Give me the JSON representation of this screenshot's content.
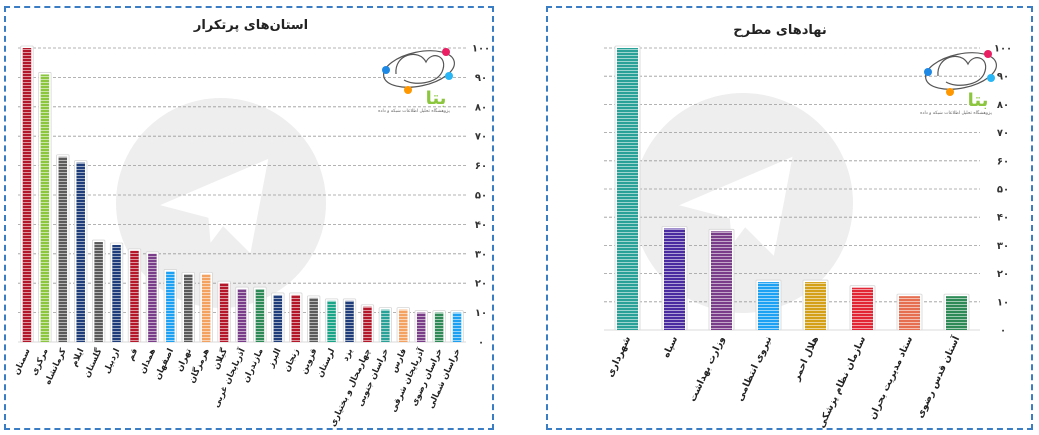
{
  "chart_data": [
    {
      "type": "bar",
      "title": "استان‌های پرتکرار",
      "categories": [
        "سمنان",
        "مرکزی",
        "کرمانشاه",
        "ایلام",
        "گلستان",
        "اردبیل",
        "قم",
        "همدان",
        "اصفهان",
        "تهران",
        "هرمزگان",
        "گیلان",
        "آذربایجان غربی",
        "مازندران",
        "البرز",
        "زنجان",
        "قزوین",
        "لرستان",
        "یزد",
        "چهارمحال و بختیاری",
        "خراسان جنوبی",
        "فارس",
        "آذربایجان شرقی",
        "خراسان رضوی",
        "خراسان شمالی"
      ],
      "values": [
        100,
        91,
        63,
        61,
        34,
        33,
        31,
        30,
        24,
        23,
        23,
        20,
        18,
        18,
        16,
        16,
        15,
        14,
        14,
        12,
        11,
        11,
        10,
        10,
        10
      ],
      "colors": [
        "#b5172a",
        "#8cc63f",
        "#5a5a5a",
        "#1f3d7a",
        "#5a5a5a",
        "#1f3d7a",
        "#b5172a",
        "#7a3d8a",
        "#1da1f2",
        "#5a5a5a",
        "#f4a261",
        "#b5172a",
        "#7a3d8a",
        "#2e8b57",
        "#1f3d7a",
        "#b5172a",
        "#5a5a5a",
        "#1aa589",
        "#1f3d7a",
        "#b5172a",
        "#2aa198",
        "#f4a261",
        "#7a3d8a",
        "#2e8b57",
        "#1da1f2"
      ],
      "y_ticks": [
        "۰",
        "۱۰",
        "۲۰",
        "۳۰",
        "۴۰",
        "۵۰",
        "۶۰",
        "۷۰",
        "۸۰",
        "۹۰",
        "۱۰۰"
      ],
      "ylim": [
        0,
        100
      ],
      "grid": true
    },
    {
      "type": "bar",
      "title": "نهادهای مطرح",
      "categories": [
        "شهرداری",
        "سپاه",
        "وزارت بهداشت",
        "نیروی انتظامی",
        "هلال احمر",
        "سازمان نظام پزشکی",
        "ستاد مدیریت بحران",
        "آستان قدس رضوی"
      ],
      "values": [
        100,
        36,
        35,
        17,
        17,
        15,
        12,
        12
      ],
      "colors": [
        "#2aa198",
        "#4b2ca0",
        "#7a3d8a",
        "#1da1f2",
        "#d4a017",
        "#e32636",
        "#e76f51",
        "#2e8b57"
      ],
      "y_ticks": [
        "۰",
        "۱۰",
        "۲۰",
        "۳۰",
        "۴۰",
        "۵۰",
        "۶۰",
        "۷۰",
        "۸۰",
        "۹۰",
        "۱۰۰"
      ],
      "ylim": [
        0,
        100
      ],
      "grid": true
    }
  ],
  "logo": {
    "name": "بتا",
    "tagline": "پژوهشگاه تحلیل اطلاعات شبکه و داده"
  }
}
